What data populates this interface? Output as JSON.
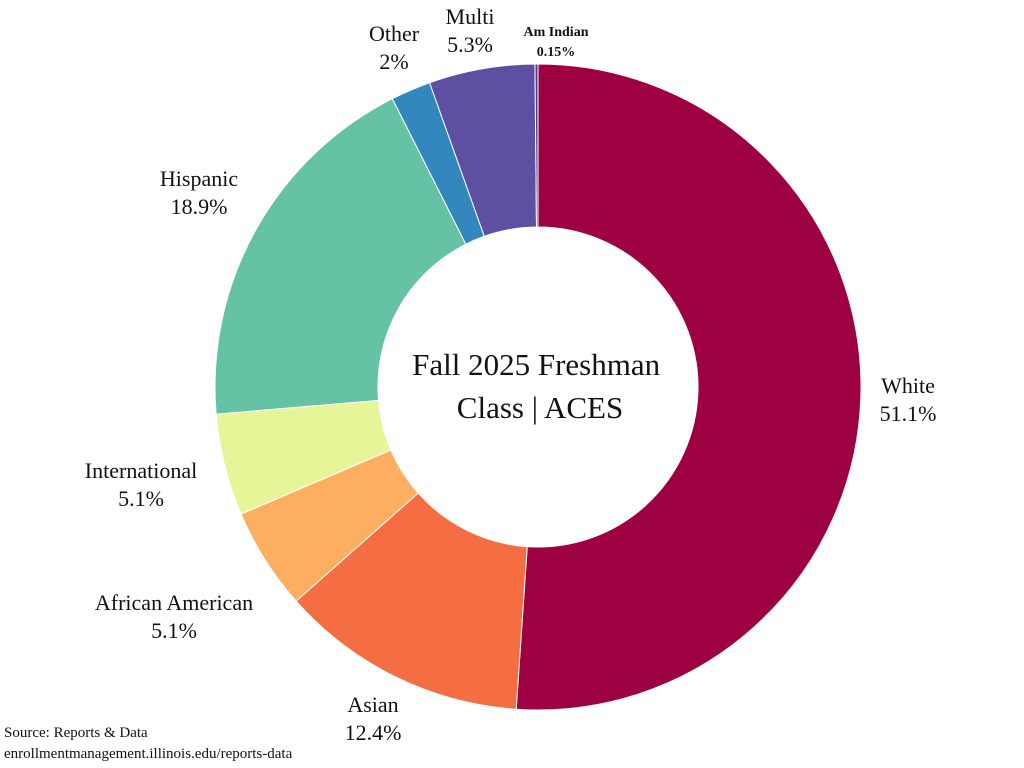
{
  "chart_data": {
    "type": "pie",
    "variant": "donut",
    "center_title_lines": [
      "Fall 2025 Freshman",
      "Class | ACES"
    ],
    "slices": [
      {
        "name": "White",
        "value": 51.1,
        "label": "51.1%",
        "color": "#9E0142"
      },
      {
        "name": "Asian",
        "value": 12.4,
        "label": "12.4%",
        "color": "#F46D43"
      },
      {
        "name": "African American",
        "value": 5.1,
        "label": "5.1%",
        "color": "#FDAE61"
      },
      {
        "name": "International",
        "value": 5.1,
        "label": "5.1%",
        "color": "#E6F598"
      },
      {
        "name": "Hispanic",
        "value": 18.9,
        "label": "18.9%",
        "color": "#66C2A5"
      },
      {
        "name": "Other",
        "value": 2,
        "label": "2%",
        "color": "#3288BD"
      },
      {
        "name": "Multi",
        "value": 5.3,
        "label": "5.3%",
        "color": "#5E4FA2"
      },
      {
        "name": "Am Indian",
        "value": 0.15,
        "label": "0.15%",
        "color": "#4B3C8C"
      }
    ],
    "start_angle": "top",
    "direction": "clockwise"
  },
  "source": {
    "line1": "Source: Reports & Data",
    "line2": "enrollmentmanagement.illinois.edu/reports-data"
  }
}
